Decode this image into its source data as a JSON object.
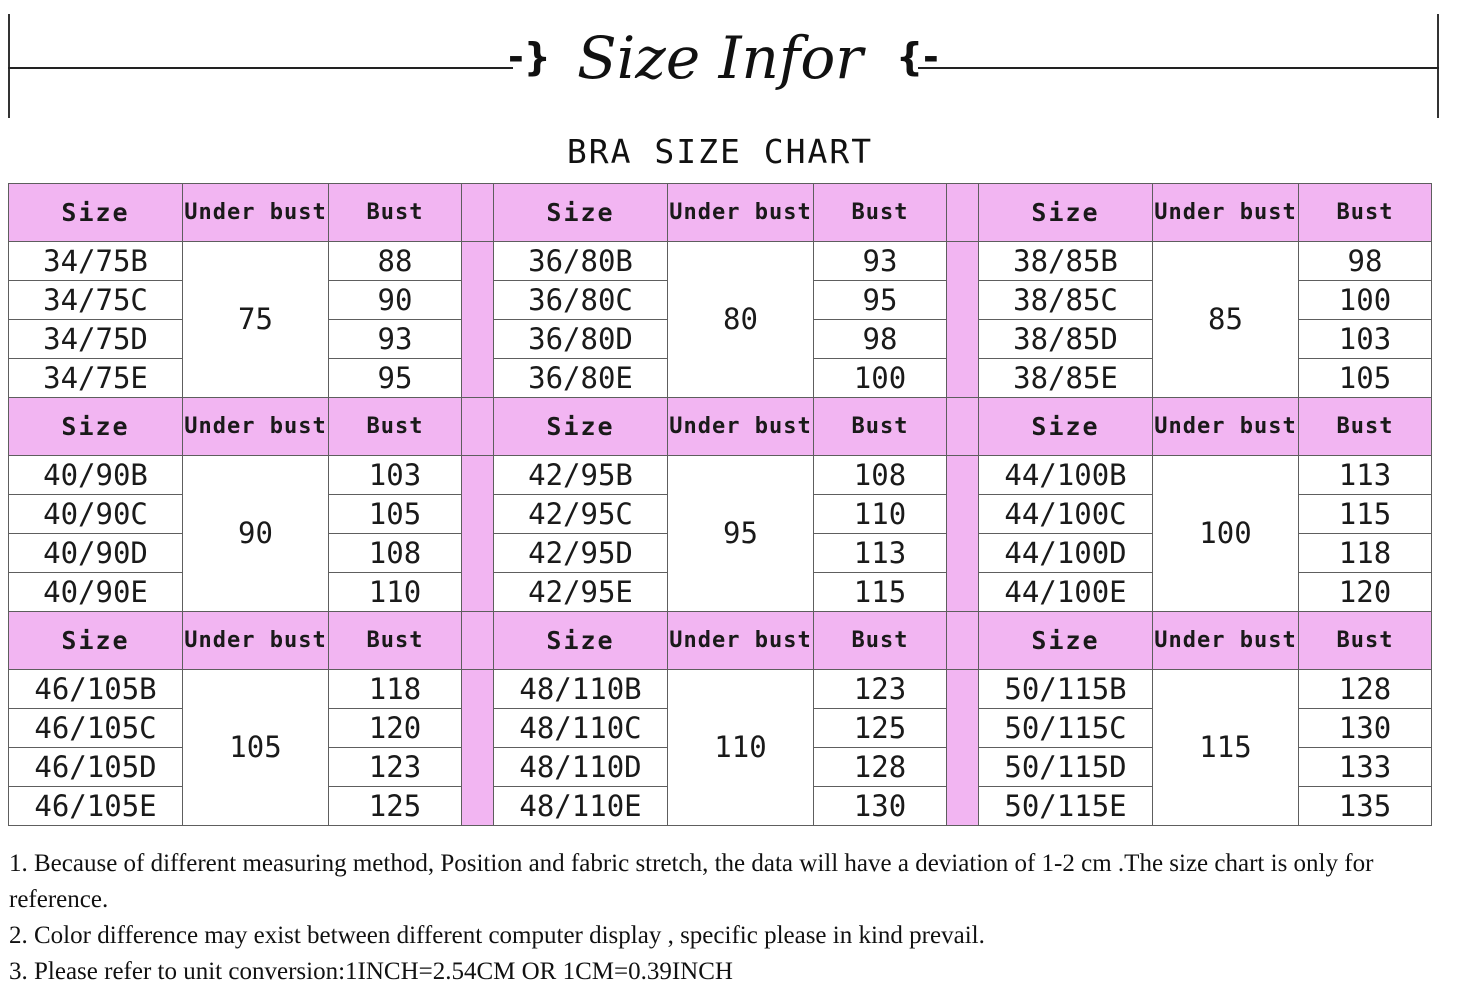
{
  "header": {
    "title": "Size Infor",
    "bracket_left": "-}",
    "bracket_right": "{-",
    "subtitle": "BRA SIZE CHART"
  },
  "table": {
    "columns": [
      "Size",
      "Under bust",
      "Bust"
    ],
    "header_color": "#f2b5f2",
    "blocks": [
      {
        "groups": [
          {
            "under_bust": "75",
            "rows": [
              {
                "size": "34/75B",
                "bust": "88"
              },
              {
                "size": "34/75C",
                "bust": "90"
              },
              {
                "size": "34/75D",
                "bust": "93"
              },
              {
                "size": "34/75E",
                "bust": "95"
              }
            ]
          },
          {
            "under_bust": "80",
            "rows": [
              {
                "size": "36/80B",
                "bust": "93"
              },
              {
                "size": "36/80C",
                "bust": "95"
              },
              {
                "size": "36/80D",
                "bust": "98"
              },
              {
                "size": "36/80E",
                "bust": "100"
              }
            ]
          },
          {
            "under_bust": "85",
            "rows": [
              {
                "size": "38/85B",
                "bust": "98"
              },
              {
                "size": "38/85C",
                "bust": "100"
              },
              {
                "size": "38/85D",
                "bust": "103"
              },
              {
                "size": "38/85E",
                "bust": "105"
              }
            ]
          }
        ]
      },
      {
        "groups": [
          {
            "under_bust": "90",
            "rows": [
              {
                "size": "40/90B",
                "bust": "103"
              },
              {
                "size": "40/90C",
                "bust": "105"
              },
              {
                "size": "40/90D",
                "bust": "108"
              },
              {
                "size": "40/90E",
                "bust": "110"
              }
            ]
          },
          {
            "under_bust": "95",
            "rows": [
              {
                "size": "42/95B",
                "bust": "108"
              },
              {
                "size": "42/95C",
                "bust": "110"
              },
              {
                "size": "42/95D",
                "bust": "113"
              },
              {
                "size": "42/95E",
                "bust": "115"
              }
            ]
          },
          {
            "under_bust": "100",
            "rows": [
              {
                "size": "44/100B",
                "bust": "113"
              },
              {
                "size": "44/100C",
                "bust": "115"
              },
              {
                "size": "44/100D",
                "bust": "118"
              },
              {
                "size": "44/100E",
                "bust": "120"
              }
            ]
          }
        ]
      },
      {
        "groups": [
          {
            "under_bust": "105",
            "rows": [
              {
                "size": "46/105B",
                "bust": "118"
              },
              {
                "size": "46/105C",
                "bust": "120"
              },
              {
                "size": "46/105D",
                "bust": "123"
              },
              {
                "size": "46/105E",
                "bust": "125"
              }
            ]
          },
          {
            "under_bust": "110",
            "rows": [
              {
                "size": "48/110B",
                "bust": "123"
              },
              {
                "size": "48/110C",
                "bust": "125"
              },
              {
                "size": "48/110D",
                "bust": "128"
              },
              {
                "size": "48/110E",
                "bust": "130"
              }
            ]
          },
          {
            "under_bust": "115",
            "rows": [
              {
                "size": "50/115B",
                "bust": "128"
              },
              {
                "size": "50/115C",
                "bust": "130"
              },
              {
                "size": "50/115D",
                "bust": "133"
              },
              {
                "size": "50/115E",
                "bust": "135"
              }
            ]
          }
        ]
      }
    ]
  },
  "notes": [
    "1. Because of different measuring method, Position and fabric stretch, the data will have a deviation of 1-2 cm .The size chart is only for reference.",
    "2. Color difference may exist between different computer display , specific please in kind prevail.",
    "3. Please refer to unit conversion:1INCH=2.54CM OR 1CM=0.39INCH"
  ]
}
